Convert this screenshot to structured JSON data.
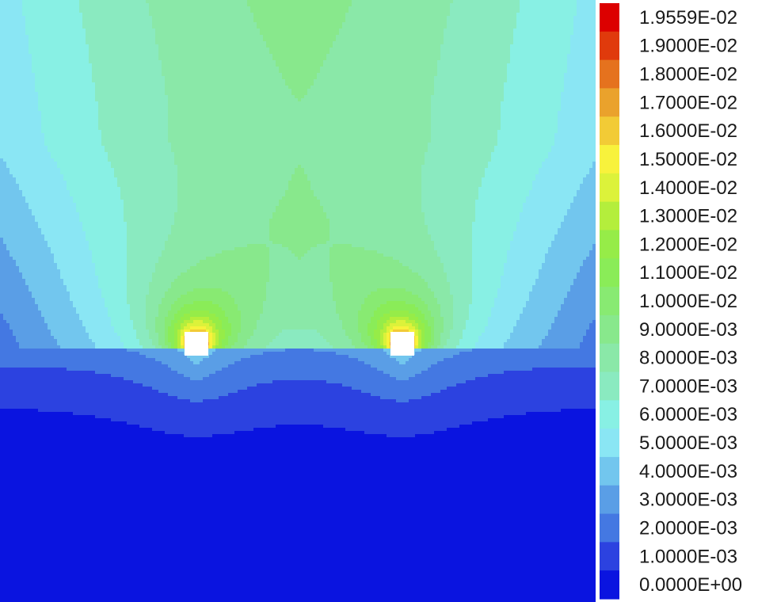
{
  "chart_data": {
    "type": "heatmap",
    "title": "",
    "xlabel": "",
    "ylabel": "",
    "colorbar": {
      "position": "right",
      "labels": [
        "1.9559E-02",
        "1.9000E-02",
        "1.8000E-02",
        "1.7000E-02",
        "1.6000E-02",
        "1.5000E-02",
        "1.4000E-02",
        "1.3000E-02",
        "1.2000E-02",
        "1.1000E-02",
        "1.0000E-02",
        "9.0000E-03",
        "8.0000E-03",
        "7.0000E-03",
        "6.0000E-03",
        "5.0000E-03",
        "4.0000E-03",
        "3.0000E-03",
        "2.0000E-03",
        "1.0000E-03",
        "0.0000E+00"
      ],
      "colors": [
        "#dc0000",
        "#e03a0c",
        "#e5721e",
        "#eaa22c",
        "#f2cb36",
        "#f8f23c",
        "#dcf23a",
        "#b4ee3c",
        "#96ec48",
        "#8aec58",
        "#88ea72",
        "#88e88c",
        "#8ae8a8",
        "#8aeac0",
        "#88f0e4",
        "#8ae6f4",
        "#72c6ee",
        "#5a9ee6",
        "#4478e2",
        "#2c42e0",
        "#0a14e0"
      ]
    },
    "obstacles": [
      {
        "name": "left-block",
        "x": 248,
        "y": 433
      },
      {
        "name": "right-block",
        "x": 508,
        "y": 433
      }
    ],
    "value_range": [
      0.0,
      0.019559
    ]
  }
}
